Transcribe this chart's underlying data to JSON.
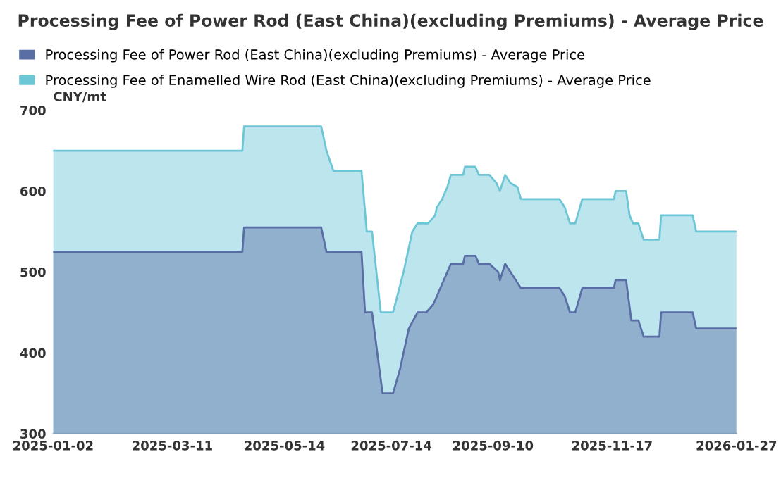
{
  "chart_data": {
    "type": "area",
    "title": "Processing Fee of Power Rod (East China)(excluding Premiums) - Average Price",
    "ylabel": "CNY/mt",
    "xlim": [
      "2025-01-02",
      "2026-01-27"
    ],
    "xticks": [
      "2025-01-02",
      "2025-03-11",
      "2025-05-14",
      "2025-07-14",
      "2025-09-10",
      "2025-11-17",
      "2026-01-27"
    ],
    "ylim": [
      300,
      700
    ],
    "yticks": [
      300,
      400,
      500,
      600,
      700
    ],
    "grid": false,
    "legend": "top left",
    "series": [
      {
        "name": "Processing Fee of Power Rod (East China)(excluding Premiums) - Average Price",
        "color": "#5a6ea6",
        "x": [
          "2025-01-02",
          "2025-04-20",
          "2025-04-21",
          "2025-06-04",
          "2025-06-07",
          "2025-06-27",
          "2025-06-29",
          "2025-07-03",
          "2025-07-09",
          "2025-07-15",
          "2025-07-19",
          "2025-07-24",
          "2025-07-29",
          "2025-08-03",
          "2025-08-07",
          "2025-08-09",
          "2025-08-12",
          "2025-08-15",
          "2025-08-17",
          "2025-08-24",
          "2025-08-25",
          "2025-08-31",
          "2025-09-02",
          "2025-09-08",
          "2025-09-13",
          "2025-09-14",
          "2025-09-17",
          "2025-09-20",
          "2025-09-26",
          "2025-10-18",
          "2025-10-21",
          "2025-10-24",
          "2025-10-27",
          "2025-10-31",
          "2025-11-18",
          "2025-11-19",
          "2025-11-25",
          "2025-11-28",
          "2025-12-02",
          "2025-12-05",
          "2025-12-14",
          "2025-12-15",
          "2026-01-02",
          "2026-01-04",
          "2026-01-27"
        ],
        "values": [
          525,
          525,
          555,
          555,
          525,
          525,
          450,
          450,
          350,
          350,
          380,
          430,
          450,
          450,
          460,
          470,
          485,
          500,
          510,
          510,
          520,
          520,
          510,
          510,
          500,
          490,
          510,
          500,
          480,
          480,
          470,
          450,
          450,
          480,
          480,
          490,
          490,
          440,
          440,
          420,
          420,
          450,
          450,
          430,
          430
        ]
      },
      {
        "name": "Processing Fee of Enamelled Wire Rod (East China)(excluding Premiums) - Average Price",
        "color": "#6cc6d6",
        "x": [
          "2025-01-02",
          "2025-04-20",
          "2025-04-21",
          "2025-06-04",
          "2025-06-07",
          "2025-06-11",
          "2025-06-27",
          "2025-06-30",
          "2025-07-03",
          "2025-07-08",
          "2025-07-15",
          "2025-07-21",
          "2025-07-26",
          "2025-07-29",
          "2025-08-04",
          "2025-08-08",
          "2025-08-09",
          "2025-08-12",
          "2025-08-15",
          "2025-08-17",
          "2025-08-24",
          "2025-08-25",
          "2025-08-31",
          "2025-09-02",
          "2025-09-08",
          "2025-09-12",
          "2025-09-14",
          "2025-09-17",
          "2025-09-20",
          "2025-09-24",
          "2025-09-26",
          "2025-10-18",
          "2025-10-21",
          "2025-10-24",
          "2025-10-27",
          "2025-10-31",
          "2025-11-18",
          "2025-11-19",
          "2025-11-25",
          "2025-11-27",
          "2025-11-29",
          "2025-12-02",
          "2025-12-05",
          "2025-12-14",
          "2025-12-15",
          "2026-01-02",
          "2026-01-04",
          "2026-01-27"
        ],
        "values": [
          650,
          650,
          680,
          680,
          650,
          625,
          625,
          550,
          550,
          450,
          450,
          500,
          550,
          560,
          560,
          570,
          580,
          590,
          605,
          620,
          620,
          630,
          630,
          620,
          620,
          610,
          600,
          620,
          610,
          605,
          590,
          590,
          580,
          560,
          560,
          590,
          590,
          600,
          600,
          570,
          560,
          560,
          540,
          540,
          570,
          570,
          550,
          550
        ]
      }
    ]
  }
}
